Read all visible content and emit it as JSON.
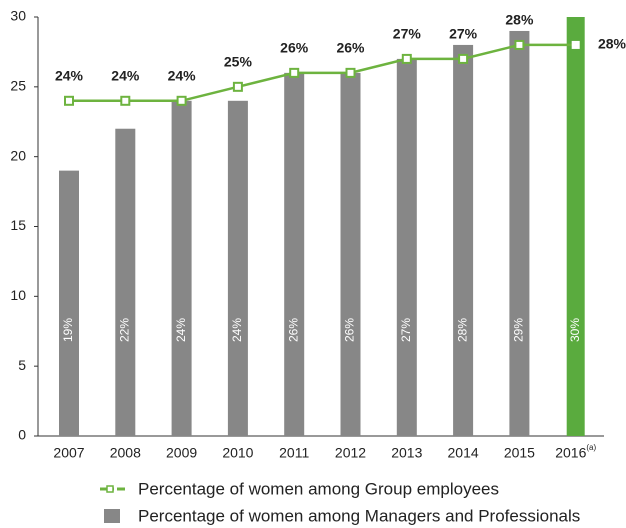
{
  "chart_data": {
    "type": "bar_line",
    "categories": [
      "2007",
      "2008",
      "2009",
      "2010",
      "2011",
      "2012",
      "2013",
      "2014",
      "2015",
      "2016"
    ],
    "category_superscripts": [
      null,
      null,
      null,
      null,
      null,
      null,
      null,
      null,
      null,
      "(a)"
    ],
    "series": [
      {
        "name": "Percentage of women among Managers and Professionals",
        "type": "bar",
        "color": "#878787",
        "colors": [
          "#878787",
          "#878787",
          "#878787",
          "#878787",
          "#878787",
          "#878787",
          "#878787",
          "#878787",
          "#878787",
          "#5aab3e"
        ],
        "values": [
          19,
          22,
          24,
          24,
          26,
          26,
          27,
          28,
          29,
          30
        ],
        "value_labels": [
          "19%",
          "22%",
          "24%",
          "24%",
          "26%",
          "26%",
          "27%",
          "28%",
          "29%",
          "30%"
        ]
      },
      {
        "name": "Percentage of women among Group employees",
        "type": "line",
        "color": "#6db33f",
        "values": [
          24,
          24,
          24,
          25,
          26,
          26,
          27,
          27,
          28,
          28
        ],
        "value_labels": [
          "24%",
          "24%",
          "24%",
          "25%",
          "26%",
          "26%",
          "27%",
          "27%",
          "28%",
          "28%"
        ]
      }
    ],
    "ylim": [
      0,
      30
    ],
    "yticks": [
      0,
      5,
      10,
      15,
      20,
      25,
      30
    ],
    "grid": false
  }
}
